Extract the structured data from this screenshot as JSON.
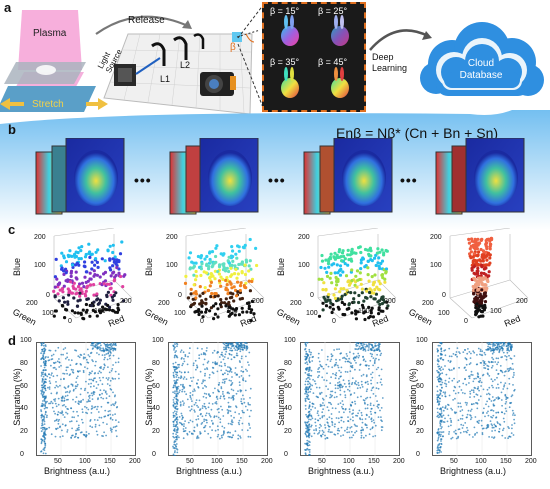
{
  "panels": {
    "a": {
      "letter": "a",
      "plasma_label": "Plasma",
      "stretch_label": "Stretch",
      "release_label": "Release",
      "light_source_label": "Light Source",
      "lens1_label": "L1",
      "lens2_label": "L2",
      "beta_mark": "β",
      "angle_labels": [
        "β = 15°",
        "β = 25°",
        "β = 35°",
        "β = 45°"
      ],
      "deep_learning_label": "Deep Learning",
      "cloud_label": "Cloud Database"
    },
    "b": {
      "letter": "b",
      "equation": "Enβ = Nβ* (Cn + Bn + Sn)",
      "ellipsis": "•••"
    },
    "c": {
      "letter": "c",
      "axis_blue": "Blue",
      "axis_green": "Green",
      "axis_red": "Red",
      "ticks_blue": [
        "0",
        "100",
        "200"
      ],
      "ticks_green": [
        "200",
        "100"
      ],
      "ticks_red": [
        "0",
        "100",
        "200"
      ]
    },
    "d": {
      "letter": "d",
      "ylabel": "Saturation (%)",
      "xlabel": "Brightness (a.u.)",
      "yticks": [
        "0",
        "20",
        "40",
        "60",
        "80",
        "100"
      ],
      "xticks": [
        "50",
        "100",
        "150",
        "200"
      ]
    }
  },
  "colors": {
    "cloud": "#2f8fe0",
    "frame_orange": "#e07020",
    "band_blue": "#8ccbf2",
    "scatter_blue": "#1f77b4"
  }
}
